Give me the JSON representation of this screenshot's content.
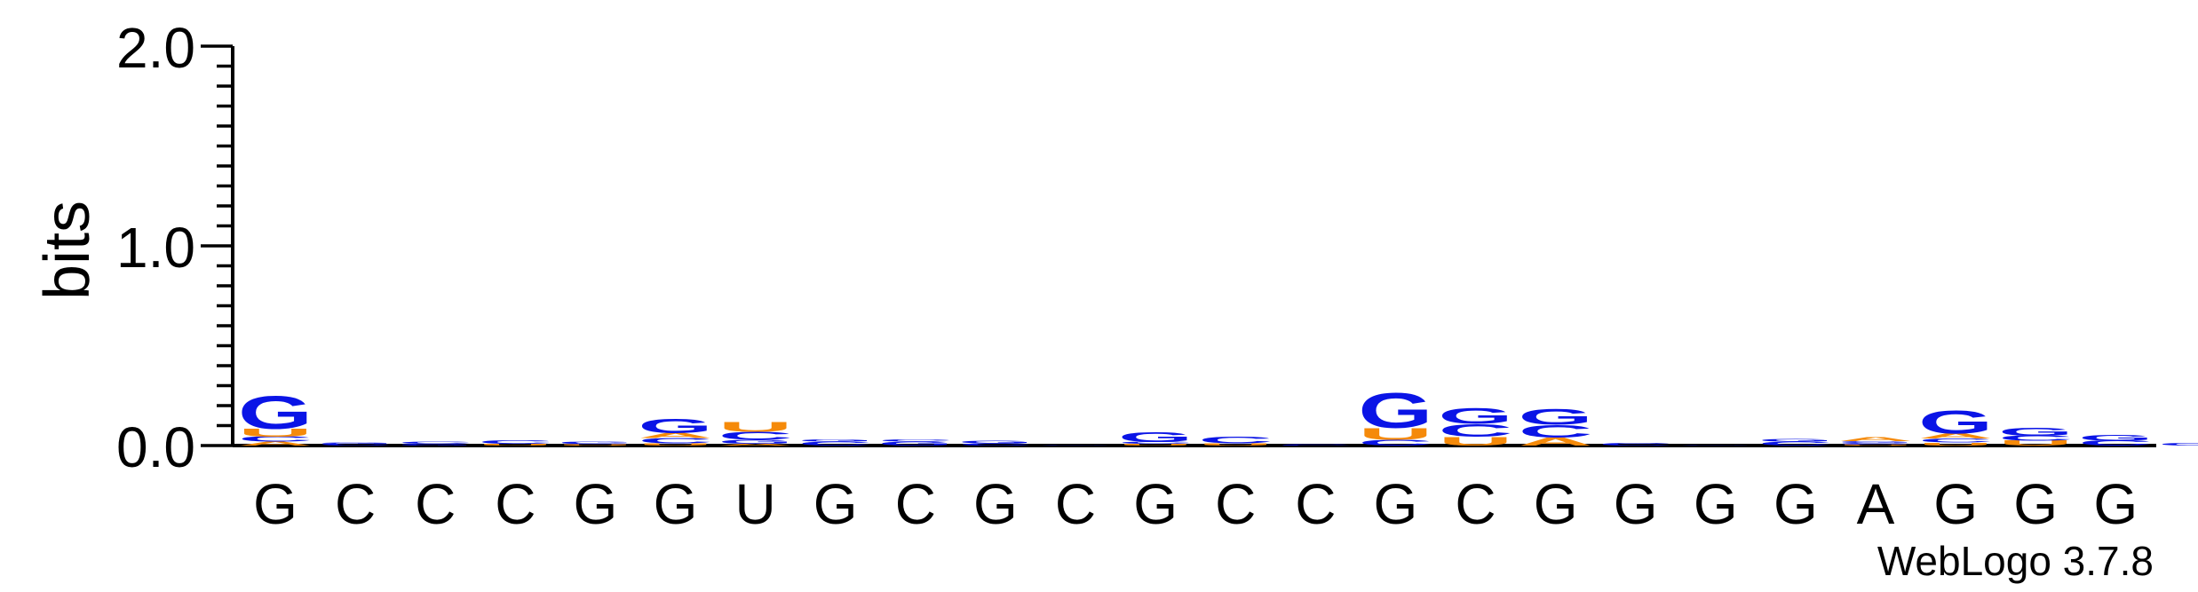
{
  "chart_data": {
    "type": "sequence-logo",
    "ylabel": "bits",
    "ylim": [
      0,
      2.0
    ],
    "y_ticks": [
      "0.0",
      "1.0",
      "2.0"
    ],
    "y_tick_values": [
      0,
      1,
      2
    ],
    "minor_tick_step": 0.1,
    "watermark": "WebLogo 3.7.8",
    "colors": {
      "G": "#0a14e6",
      "C": "#0a14e6",
      "U": "#f58a0a",
      "A": "#f58a0a"
    },
    "columns": [
      {
        "label": "G",
        "stack": [
          {
            "l": "A",
            "h": 0.02
          },
          {
            "l": "C",
            "h": 0.025
          },
          {
            "l": "U",
            "h": 0.04
          },
          {
            "l": "G",
            "h": 0.17
          }
        ]
      },
      {
        "label": "C",
        "stack": [
          {
            "l": "C",
            "h": 0.01
          },
          {
            "l": "G",
            "h": 0.006
          }
        ]
      },
      {
        "label": "C",
        "stack": [
          {
            "l": "G",
            "h": 0.01
          },
          {
            "l": "C",
            "h": 0.012
          }
        ]
      },
      {
        "label": "C",
        "stack": [
          {
            "l": "U",
            "h": 0.008
          },
          {
            "l": "C",
            "h": 0.018
          }
        ]
      },
      {
        "label": "G",
        "stack": [
          {
            "l": "U",
            "h": 0.006
          },
          {
            "l": "C",
            "h": 0.006
          },
          {
            "l": "G",
            "h": 0.01
          }
        ]
      },
      {
        "label": "G",
        "stack": [
          {
            "l": "U",
            "h": 0.012
          },
          {
            "l": "C",
            "h": 0.025
          },
          {
            "l": "A",
            "h": 0.025
          },
          {
            "l": "G",
            "h": 0.075
          }
        ]
      },
      {
        "label": "U",
        "stack": [
          {
            "l": "A",
            "h": 0.01
          },
          {
            "l": "G",
            "h": 0.02
          },
          {
            "l": "C",
            "h": 0.04
          },
          {
            "l": "U",
            "h": 0.05
          }
        ]
      },
      {
        "label": "G",
        "stack": [
          {
            "l": "C",
            "h": 0.02
          },
          {
            "l": "G",
            "h": 0.012
          }
        ]
      },
      {
        "label": "C",
        "stack": [
          {
            "l": "G",
            "h": 0.02
          },
          {
            "l": "C",
            "h": 0.012
          }
        ]
      },
      {
        "label": "G",
        "stack": [
          {
            "l": "C",
            "h": 0.012
          },
          {
            "l": "G",
            "h": 0.015
          }
        ]
      },
      {
        "label": "C",
        "stack": [
          {
            "l": "G",
            "h": 0.004
          }
        ]
      },
      {
        "label": "G",
        "stack": [
          {
            "l": "U",
            "h": 0.008
          },
          {
            "l": "C",
            "h": 0.01
          },
          {
            "l": "G",
            "h": 0.05
          }
        ]
      },
      {
        "label": "C",
        "stack": [
          {
            "l": "U",
            "h": 0.012
          },
          {
            "l": "C",
            "h": 0.035
          }
        ]
      },
      {
        "label": "C",
        "stack": [
          {
            "l": "C",
            "h": 0.005
          }
        ]
      },
      {
        "label": "G",
        "stack": [
          {
            "l": "C",
            "h": 0.03
          },
          {
            "l": "U",
            "h": 0.06
          },
          {
            "l": "G",
            "h": 0.18
          }
        ]
      },
      {
        "label": "C",
        "stack": [
          {
            "l": "U",
            "h": 0.045
          },
          {
            "l": "C",
            "h": 0.065
          },
          {
            "l": "G",
            "h": 0.08
          }
        ]
      },
      {
        "label": "G",
        "stack": [
          {
            "l": "A",
            "h": 0.04
          },
          {
            "l": "C",
            "h": 0.065
          },
          {
            "l": "G",
            "h": 0.08
          }
        ]
      },
      {
        "label": "G",
        "stack": [
          {
            "l": "C",
            "h": 0.015
          }
        ]
      },
      {
        "label": "G",
        "stack": [
          {
            "l": "G",
            "h": 0.004
          }
        ]
      },
      {
        "label": "G",
        "stack": [
          {
            "l": "C",
            "h": 0.02
          },
          {
            "l": "G",
            "h": 0.015
          }
        ]
      },
      {
        "label": "A",
        "stack": [
          {
            "l": "U",
            "h": 0.005
          },
          {
            "l": "C",
            "h": 0.008
          },
          {
            "l": "G",
            "h": 0.01
          },
          {
            "l": "A",
            "h": 0.02
          }
        ]
      },
      {
        "label": "G",
        "stack": [
          {
            "l": "U",
            "h": 0.015
          },
          {
            "l": "C",
            "h": 0.02
          },
          {
            "l": "A",
            "h": 0.025
          },
          {
            "l": "G",
            "h": 0.12
          }
        ]
      },
      {
        "label": "G",
        "stack": [
          {
            "l": "U",
            "h": 0.025
          },
          {
            "l": "C",
            "h": 0.025
          },
          {
            "l": "G",
            "h": 0.04
          }
        ]
      },
      {
        "label": "G",
        "stack": [
          {
            "l": "C",
            "h": 0.025
          },
          {
            "l": "G",
            "h": 0.03
          }
        ]
      },
      {
        "label": "",
        "stack": [
          {
            "l": "G",
            "h": 0.015
          }
        ]
      }
    ]
  }
}
